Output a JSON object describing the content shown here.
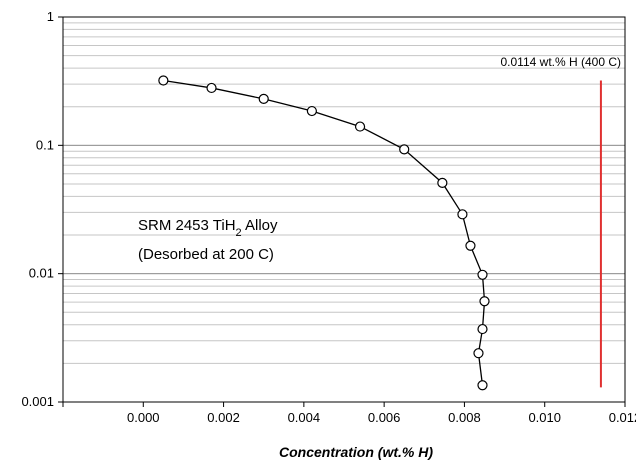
{
  "chart_data": {
    "type": "scatter",
    "title": "",
    "xlabel": "Concentration (wt.% H)",
    "ylabel": "",
    "xlim": [
      -0.002,
      0.012
    ],
    "ylim": [
      0.001,
      1
    ],
    "y_scale": "log",
    "grid": true,
    "x_ticks": [
      "0.000",
      "0.002",
      "0.004",
      "0.006",
      "0.008",
      "0.010",
      "0.012"
    ],
    "y_ticks": [
      "0.001",
      "0.01",
      "0.1",
      "1"
    ],
    "series": [
      {
        "marker": "open-circle",
        "line": true,
        "color": "#000000",
        "points": [
          {
            "x": 0.0005,
            "y": 0.32
          },
          {
            "x": 0.0017,
            "y": 0.28
          },
          {
            "x": 0.003,
            "y": 0.23
          },
          {
            "x": 0.0042,
            "y": 0.185
          },
          {
            "x": 0.0054,
            "y": 0.14
          },
          {
            "x": 0.0065,
            "y": 0.093
          },
          {
            "x": 0.00745,
            "y": 0.051
          },
          {
            "x": 0.00795,
            "y": 0.029
          },
          {
            "x": 0.00815,
            "y": 0.0165
          },
          {
            "x": 0.00845,
            "y": 0.0098
          },
          {
            "x": 0.0085,
            "y": 0.0061
          },
          {
            "x": 0.00845,
            "y": 0.0037
          },
          {
            "x": 0.00835,
            "y": 0.0024
          },
          {
            "x": 0.00845,
            "y": 0.00135
          }
        ]
      }
    ],
    "reference_line": {
      "x": 0.0114,
      "y_range": [
        0.0013,
        0.32
      ],
      "color": "#e03030",
      "label": "0.0114 wt.% H (400 C)"
    },
    "annotation": {
      "line1_prefix": "SRM 2453 TiH",
      "line1_subscript": "2",
      "line1_suffix": " Alloy",
      "line2": "(Desorbed at 200 C)"
    }
  }
}
